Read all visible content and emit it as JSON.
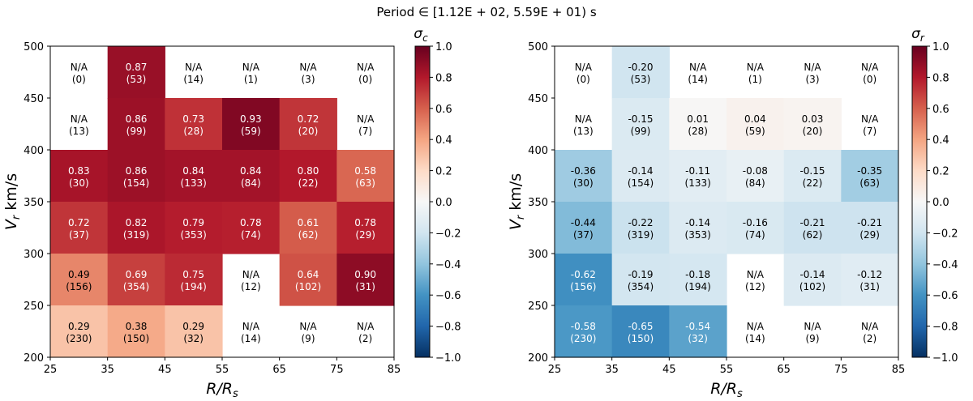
{
  "suptitle": "Period ∈ [1.12E + 02, 5.59E + 01) s",
  "chart_data": [
    {
      "type": "heatmap",
      "name": "sigma-c",
      "xlabel": "R/R",
      "xlabel_sub": "s",
      "ylabel": "V",
      "ylabel_sub": "r",
      "ylabel_unit": " km/s",
      "x_edges": [
        25,
        35,
        45,
        55,
        65,
        75,
        85
      ],
      "y_edges": [
        200,
        250,
        300,
        350,
        400,
        450,
        500
      ],
      "x_ticks": [
        "25",
        "35",
        "45",
        "55",
        "65",
        "75",
        "85"
      ],
      "y_ticks": [
        "200",
        "250",
        "300",
        "350",
        "400",
        "450",
        "500"
      ],
      "clim": [
        -1.0,
        1.0
      ],
      "colorbar_label": "σ",
      "colorbar_sub": "c",
      "colorbar_ticks": [
        "−1.0",
        "−0.8",
        "−0.6",
        "−0.4",
        "−0.2",
        "0.0",
        "0.2",
        "0.4",
        "0.6",
        "0.8",
        "1.0"
      ],
      "rows_top_to_bottom": [
        {
          "values": [
            null,
            0.87,
            null,
            null,
            null,
            null
          ],
          "labels": [
            "N/A",
            "0.87",
            "N/A",
            "N/A",
            "N/A",
            "N/A"
          ],
          "counts": [
            "(0)",
            "(53)",
            "(14)",
            "(1)",
            "(3)",
            "(0)"
          ]
        },
        {
          "values": [
            null,
            0.86,
            0.73,
            0.93,
            0.72,
            null
          ],
          "labels": [
            "N/A",
            "0.86",
            "0.73",
            "0.93",
            "0.72",
            "N/A"
          ],
          "counts": [
            "(13)",
            "(99)",
            "(28)",
            "(59)",
            "(20)",
            "(7)"
          ]
        },
        {
          "values": [
            0.83,
            0.86,
            0.84,
            0.84,
            0.8,
            0.58
          ],
          "labels": [
            "0.83",
            "0.86",
            "0.84",
            "0.84",
            "0.80",
            "0.58"
          ],
          "counts": [
            "(30)",
            "(154)",
            "(133)",
            "(84)",
            "(22)",
            "(63)"
          ]
        },
        {
          "values": [
            0.72,
            0.82,
            0.79,
            0.78,
            0.61,
            0.78
          ],
          "labels": [
            "0.72",
            "0.82",
            "0.79",
            "0.78",
            "0.61",
            "0.78"
          ],
          "counts": [
            "(37)",
            "(319)",
            "(353)",
            "(74)",
            "(62)",
            "(29)"
          ]
        },
        {
          "values": [
            0.49,
            0.69,
            0.75,
            null,
            0.64,
            0.9
          ],
          "labels": [
            "0.49",
            "0.69",
            "0.75",
            "N/A",
            "0.64",
            "0.90"
          ],
          "counts": [
            "(156)",
            "(354)",
            "(194)",
            "(12)",
            "(102)",
            "(31)"
          ]
        },
        {
          "values": [
            0.29,
            0.38,
            0.29,
            null,
            null,
            null
          ],
          "labels": [
            "0.29",
            "0.38",
            "0.29",
            "N/A",
            "N/A",
            "N/A"
          ],
          "counts": [
            "(230)",
            "(150)",
            "(32)",
            "(14)",
            "(9)",
            "(2)"
          ]
        }
      ]
    },
    {
      "type": "heatmap",
      "name": "sigma-r",
      "xlabel": "R/R",
      "xlabel_sub": "s",
      "ylabel": "V",
      "ylabel_sub": "r",
      "ylabel_unit": " km/s",
      "x_edges": [
        25,
        35,
        45,
        55,
        65,
        75,
        85
      ],
      "y_edges": [
        200,
        250,
        300,
        350,
        400,
        450,
        500
      ],
      "x_ticks": [
        "25",
        "35",
        "45",
        "55",
        "65",
        "75",
        "85"
      ],
      "y_ticks": [
        "200",
        "250",
        "300",
        "350",
        "400",
        "450",
        "500"
      ],
      "clim": [
        -1.0,
        1.0
      ],
      "colorbar_label": "σ",
      "colorbar_sub": "r",
      "colorbar_ticks": [
        "−1.0",
        "−0.8",
        "−0.6",
        "−0.4",
        "−0.2",
        "0.0",
        "0.2",
        "0.4",
        "0.6",
        "0.8",
        "1.0"
      ],
      "rows_top_to_bottom": [
        {
          "values": [
            null,
            -0.2,
            null,
            null,
            null,
            null
          ],
          "labels": [
            "N/A",
            "-0.20",
            "N/A",
            "N/A",
            "N/A",
            "N/A"
          ],
          "counts": [
            "(0)",
            "(53)",
            "(14)",
            "(1)",
            "(3)",
            "(0)"
          ]
        },
        {
          "values": [
            null,
            -0.15,
            0.01,
            0.04,
            0.03,
            null
          ],
          "labels": [
            "N/A",
            "-0.15",
            "0.01",
            "0.04",
            "0.03",
            "N/A"
          ],
          "counts": [
            "(13)",
            "(99)",
            "(28)",
            "(59)",
            "(20)",
            "(7)"
          ]
        },
        {
          "values": [
            -0.36,
            -0.14,
            -0.11,
            -0.08,
            -0.15,
            -0.35
          ],
          "labels": [
            "-0.36",
            "-0.14",
            "-0.11",
            "-0.08",
            "-0.15",
            "-0.35"
          ],
          "counts": [
            "(30)",
            "(154)",
            "(133)",
            "(84)",
            "(22)",
            "(63)"
          ]
        },
        {
          "values": [
            -0.44,
            -0.22,
            -0.14,
            -0.16,
            -0.21,
            -0.21
          ],
          "labels": [
            "-0.44",
            "-0.22",
            "-0.14",
            "-0.16",
            "-0.21",
            "-0.21"
          ],
          "counts": [
            "(37)",
            "(319)",
            "(353)",
            "(74)",
            "(62)",
            "(29)"
          ]
        },
        {
          "values": [
            -0.62,
            -0.19,
            -0.18,
            null,
            -0.14,
            -0.12
          ],
          "labels": [
            "-0.62",
            "-0.19",
            "-0.18",
            "N/A",
            "-0.14",
            "-0.12"
          ],
          "counts": [
            "(156)",
            "(354)",
            "(194)",
            "(12)",
            "(102)",
            "(31)"
          ]
        },
        {
          "values": [
            -0.58,
            -0.65,
            -0.54,
            null,
            null,
            null
          ],
          "labels": [
            "-0.58",
            "-0.65",
            "-0.54",
            "N/A",
            "N/A",
            "N/A"
          ],
          "counts": [
            "(230)",
            "(150)",
            "(32)",
            "(14)",
            "(9)",
            "(2)"
          ]
        }
      ]
    }
  ]
}
